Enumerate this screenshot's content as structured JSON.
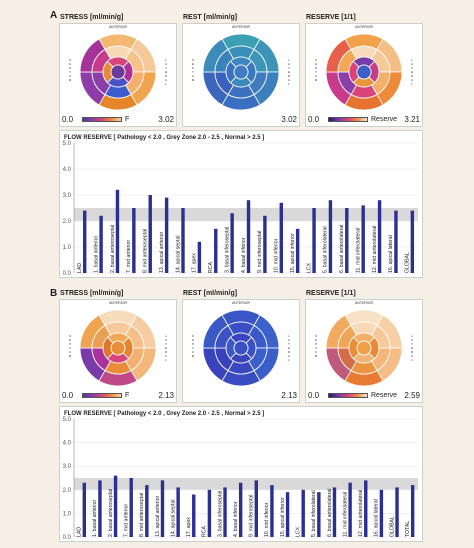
{
  "panels": [
    {
      "letter": "A",
      "maps": [
        {
          "title": "STRESS [ml/min/g]",
          "top_label": "ANTERIOR",
          "min": "0.0",
          "max": "3.02",
          "legend": "F",
          "colors": {
            "apex": "#6a3b9a",
            "apical": [
              "#d9447a",
              "#b0309a",
              "#4a50c8",
              "#e58a3a"
            ],
            "mid": [
              "#f7d9b8",
              "#f5c28a",
              "#f3b070",
              "#3d5bcf",
              "#8a3fa8",
              "#c83a8a"
            ],
            "basal": [
              "#f3b872",
              "#f5c99a",
              "#f0a44f",
              "#e6862a",
              "#8e3ca8",
              "#a33397"
            ]
          }
        },
        {
          "title": "REST [ml/min/g]",
          "top_label": "ANTERIOR",
          "min": "",
          "max": "3.02",
          "legend": "",
          "colors": {
            "apex": "#3f7cc2",
            "apical": [
              "#3d86c0",
              "#3a78bf",
              "#3b8bc0",
              "#3a72bf"
            ],
            "mid": [
              "#3a8fb9",
              "#3c96b8",
              "#3e7cbf",
              "#3d70bf",
              "#3a62bc",
              "#3a82bd"
            ],
            "basal": [
              "#3aa0b2",
              "#3d93b8",
              "#3c7fbf",
              "#3a6ec0",
              "#3b66bd",
              "#3c8bbb"
            ]
          }
        },
        {
          "title": "RESERVE [1/1]",
          "top_label": "ANTERIOR",
          "min": "0.0",
          "max": "3.21",
          "legend": "Reserve",
          "colors": {
            "apex": "#3d60c8",
            "apical": [
              "#7a3aa8",
              "#c83c86",
              "#e8963c",
              "#d9447a"
            ],
            "mid": [
              "#f7dcbc",
              "#f6c999",
              "#f2b06a",
              "#d9447a",
              "#8a3fa8",
              "#f3a855"
            ],
            "basal": [
              "#f1a24a",
              "#f4bf86",
              "#f08a3b",
              "#e6732f",
              "#c83a8a",
              "#e7604a"
            ]
          }
        }
      ],
      "chart": {
        "title": "FLOW RESERVE [ Pathology < 2.0 , Grey Zone 2.0 - 2.5 , Normal > 2.5 ]",
        "ylim": [
          0,
          5.0
        ],
        "yticks": [
          "0.0",
          "1.0",
          "2.0",
          "3.0",
          "4.0",
          "5.0"
        ]
      }
    },
    {
      "letter": "B",
      "maps": [
        {
          "title": "STRESS [ml/min/g]",
          "top_label": "ANTERIOR",
          "min": "0.0",
          "max": "2.13",
          "legend": "F",
          "colors": {
            "apex": "#e89038",
            "apical": [
              "#f0a852",
              "#e6852e",
              "#d9447a",
              "#e0762c"
            ],
            "mid": [
              "#f5c99a",
              "#f4bf88",
              "#f2b072",
              "#ea8c38",
              "#a8329a",
              "#e8a054"
            ],
            "basal": [
              "#f7dcbc",
              "#f6cda2",
              "#f3b77c",
              "#c04888",
              "#7a3aa8",
              "#f0a452"
            ]
          }
        },
        {
          "title": "REST [ml/min/g]",
          "top_label": "ANTERIOR",
          "min": "",
          "max": "2.13",
          "legend": "",
          "colors": {
            "apex": "#3a4fc4",
            "apical": [
              "#3a46c0",
              "#3a52c6",
              "#3a44bd",
              "#3a58c8"
            ],
            "mid": [
              "#3a4ec4",
              "#3a5ac8",
              "#3c60ca",
              "#3a48c0",
              "#3a40ba",
              "#3a52c4"
            ],
            "basal": [
              "#3a56c6",
              "#3a62ca",
              "#3a5ec8",
              "#3a4cc2",
              "#3a42bc",
              "#3a58c6"
            ]
          }
        },
        {
          "title": "RESERVE [1/1]",
          "top_label": "ANTERIOR",
          "min": "0.0",
          "max": "2.59",
          "legend": "Reserve",
          "colors": {
            "apex": "#f0a04a",
            "apical": [
              "#f2b06a",
              "#e88a36",
              "#f3b276",
              "#ea8e3a"
            ],
            "mid": [
              "#f7d9b8",
              "#f5c99a",
              "#f3b57a",
              "#ec9442",
              "#d46c46",
              "#f0a658"
            ],
            "basal": [
              "#f8e2c6",
              "#f6cfa6",
              "#f4bd86",
              "#e87c34",
              "#c05a7a",
              "#f2aa5e"
            ]
          }
        }
      ],
      "chart": {
        "title": "FLOW RESERVE [ Pathology < 2.0 , Grey Zone 2.0 - 2.5 , Normal > 2.5 ]",
        "ylim": [
          0,
          5.0
        ],
        "yticks": [
          "0.0",
          "1.0",
          "2.0",
          "3.0",
          "4.0",
          "5.0"
        ]
      }
    }
  ],
  "chart_data": [
    {
      "type": "bar",
      "title": "FLOW RESERVE [ Pathology < 2.0 , Grey Zone 2.0 - 2.5 , Normal > 2.5 ]",
      "ylim": [
        0,
        5.0
      ],
      "grey_zone": [
        2.0,
        2.5
      ],
      "categories": [
        "LAD",
        "1. basal anterior",
        "2. basal anteroseptal",
        "7. mid anterior",
        "8. mid anteroseptal",
        "13. apical anterior",
        "14. apical septal",
        "17. apex",
        "RCA",
        "3. basal inferoseptal",
        "4. basal inferior",
        "9. mid inferoseptal",
        "10. mid inferior",
        "15. apical inferior",
        "LCX",
        "5. basal inferolateral",
        "6. basal anterolateral",
        "11. mid inferolateral",
        "12. mid anterolateral",
        "16. apical lateral",
        "GLOBAL"
      ],
      "values": [
        2.4,
        2.2,
        3.2,
        2.5,
        3.0,
        2.9,
        2.5,
        1.2,
        1.7,
        2.3,
        2.8,
        2.2,
        2.7,
        1.7,
        2.5,
        2.8,
        2.5,
        2.6,
        2.8,
        2.4,
        2.4
      ]
    },
    {
      "type": "bar",
      "title": "FLOW RESERVE [ Pathology < 2.0 , Grey Zone 2.0 - 2.5 , Normal > 2.5 ]",
      "ylim": [
        0,
        5.0
      ],
      "grey_zone": [
        2.0,
        2.5
      ],
      "categories": [
        "LAD",
        "1. basal anterior",
        "2. basal anteroseptal",
        "7. mid anterior",
        "8. mid anteroseptal",
        "13. apical anterior",
        "14. apical septal",
        "17. apex",
        "RCA",
        "3. basal inferoseptal",
        "4. basal inferior",
        "9. mid inferoseptal",
        "10. mid inferior",
        "15. apical inferior",
        "LCX",
        "5. basal inferolateral",
        "6. basal anterolateral",
        "11. mid inferolateral",
        "12. mid anterolateral",
        "16. apical lateral",
        "GLOBAL",
        "TOTAL"
      ],
      "values": [
        2.3,
        2.4,
        2.6,
        2.5,
        2.2,
        2.4,
        2.1,
        1.8,
        2.0,
        2.1,
        2.3,
        2.4,
        2.2,
        1.9,
        2.0,
        1.9,
        2.1,
        2.3,
        2.4,
        2.0,
        2.1,
        2.2
      ]
    }
  ]
}
